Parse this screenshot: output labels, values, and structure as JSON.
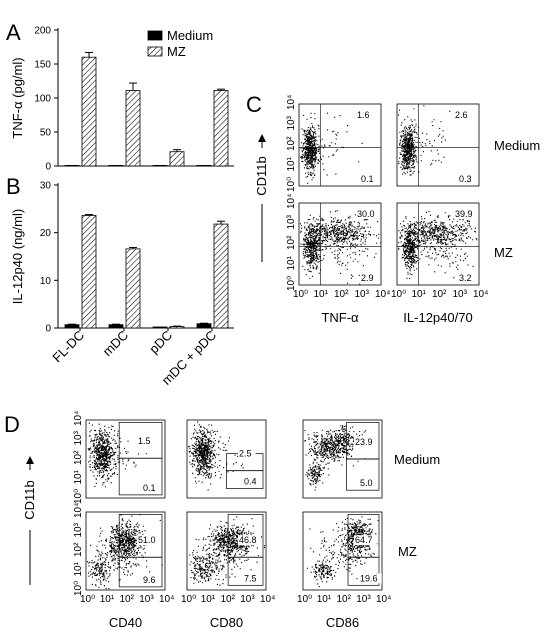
{
  "panels": {
    "a": "A",
    "b": "B",
    "c": "C",
    "d": "D"
  },
  "chart_data": [
    {
      "type": "bar",
      "panel": "A",
      "ylabel": "TNF-α (pg/ml)",
      "ylim": [
        0,
        200
      ],
      "yticks": [
        "0",
        "50",
        "100",
        "150",
        "200"
      ],
      "categories": [
        "FL-DC",
        "mDC",
        "pDC",
        "mDC + pDC"
      ],
      "legend_position": "top-right",
      "series": [
        {
          "name": "Medium",
          "values": [
            0,
            0,
            0,
            0
          ],
          "errors": [
            0,
            0,
            0,
            0
          ],
          "color": "#000000"
        },
        {
          "name": "MZ",
          "values": [
            160,
            111,
            21,
            111
          ],
          "errors": [
            7,
            11,
            3,
            2
          ],
          "pattern": "hatched"
        }
      ]
    },
    {
      "type": "bar",
      "panel": "B",
      "ylabel": "IL-12p40 (ng/ml)",
      "ylim": [
        0,
        30
      ],
      "yticks": [
        "0",
        "10",
        "20",
        "30"
      ],
      "categories": [
        "FL-DC",
        "mDC",
        "pDC",
        "mDC + pDC"
      ],
      "series": [
        {
          "values": [
            0.7,
            0.7,
            0.1,
            0.9
          ],
          "errors": [
            0.1,
            0.1,
            0.05,
            0.1
          ],
          "color": "#000000"
        },
        {
          "values": [
            23.6,
            16.6,
            0.3,
            21.8
          ],
          "errors": [
            0.2,
            0.3,
            0.1,
            0.6
          ],
          "pattern": "hatched"
        }
      ]
    },
    {
      "type": "scatter",
      "panel": "C",
      "ylabel": "CD11b",
      "xlabels": [
        "TNF-α",
        "IL-12p40/70"
      ],
      "rows": [
        "Medium",
        "MZ"
      ],
      "log_ticks": [
        "10⁰",
        "10¹",
        "10²",
        "10³",
        "10⁴"
      ],
      "quadrants": [
        {
          "row": "Medium",
          "col": "TNF-α",
          "upper_right": "1.6",
          "lower_right": "0.1"
        },
        {
          "row": "Medium",
          "col": "IL-12p40/70",
          "upper_right": "2.6",
          "lower_right": "0.3"
        },
        {
          "row": "MZ",
          "col": "TNF-α",
          "upper_right": "30.0",
          "lower_right": "2.9"
        },
        {
          "row": "MZ",
          "col": "IL-12p40/70",
          "upper_right": "39.9",
          "lower_right": "3.2"
        }
      ]
    },
    {
      "type": "scatter",
      "panel": "D",
      "ylabel": "CD11b",
      "xlabels": [
        "CD40",
        "CD80",
        "CD86"
      ],
      "rows": [
        "Medium",
        "MZ"
      ],
      "log_ticks": [
        "10⁰",
        "10¹",
        "10²",
        "10³",
        "10⁴"
      ],
      "gates": [
        {
          "row": "Medium",
          "col": "CD40",
          "upper": "1.5",
          "lower": "0.1"
        },
        {
          "row": "Medium",
          "col": "CD80",
          "upper": "2.5",
          "lower": "0.4"
        },
        {
          "row": "Medium",
          "col": "CD86",
          "upper": "23.9",
          "lower": "5.0"
        },
        {
          "row": "MZ",
          "col": "CD40",
          "upper": "51.0",
          "lower": "9.6"
        },
        {
          "row": "MZ",
          "col": "CD80",
          "upper": "46.8",
          "lower": "7.5"
        },
        {
          "row": "MZ",
          "col": "CD86",
          "upper": "64.7",
          "lower": "19.6"
        }
      ]
    }
  ]
}
